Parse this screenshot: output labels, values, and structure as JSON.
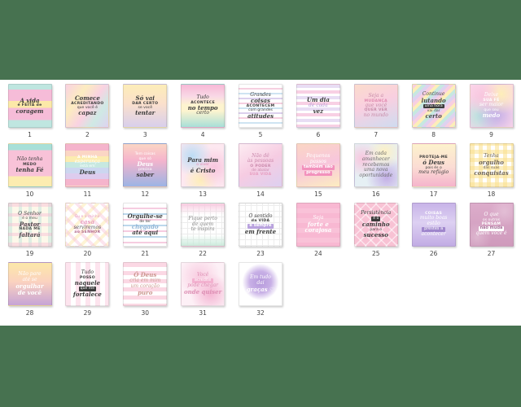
{
  "page": {
    "background_color": "#477250",
    "sheet_color": "#ffffff",
    "description": "product-gallery-of-32-quote-cards"
  },
  "grid": {
    "rows": 4,
    "cols": 9,
    "total_cards": 32
  },
  "cards": [
    {
      "n": "1",
      "fg": "#3b3b3b",
      "bg": "linear-gradient(180deg,#bfe6e0 0%,#bfe6e0 12%,#f6bcd8 12%,#f6bcd8 38%,#fce9a8 38%,#fce9a8 55%,#f6bcd8 55%,#f6bcd8 84%,#bfe6e0 84%,#bfe6e0 100%)",
      "lines": [
        {
          "t": "A vida",
          "s": "b"
        },
        {
          "t": "é FEITA de",
          "s": "c"
        },
        {
          "t": "coragem",
          "s": "b"
        }
      ]
    },
    {
      "n": "2",
      "fg": "#3b3b3b",
      "bg": "linear-gradient(125deg,#f9d2e2 0%,#fcecc0 30%,#f9d2e2 55%,#cfe9e4 75%,#ded2f0 100%)",
      "lines": [
        {
          "t": "Comece",
          "s": "b"
        },
        {
          "t": "ACREDITANDO",
          "s": "c"
        },
        {
          "t": "que você é",
          "s": "sm"
        },
        {
          "t": "capaz",
          "s": "b"
        }
      ]
    },
    {
      "n": "3",
      "fg": "#3b3b3b",
      "bg": "linear-gradient(180deg,#fcedb8 0%,#fbe0cc 45%,#d8cfec 100%)",
      "lines": [
        {
          "t": "Só vai",
          "s": "b"
        },
        {
          "t": "DAR CERTO",
          "s": "c"
        },
        {
          "t": "se você",
          "s": "sm"
        },
        {
          "t": "tentar",
          "s": "b"
        }
      ]
    },
    {
      "n": "4",
      "fg": "#3b3b3b",
      "bg": "linear-gradient(180deg,#f7b8d6 0%,#f9d9e6 28%,#fdf4cf 48%,#fdf4cf 62%,#a8dfd8 100%)",
      "lines": [
        {
          "t": "Tudo",
          "s": "s"
        },
        {
          "t": "ACONTECE",
          "s": "c"
        },
        {
          "t": "no tempo",
          "s": "b"
        },
        {
          "t": "certo",
          "s": "s"
        }
      ]
    },
    {
      "n": "5",
      "fg": "#3b3b3b",
      "bg": "repeating-linear-gradient(180deg,#ffffff 0px,#ffffff 4px,#f6cfe0 4px,#f6cfe0 6px,#ffffff 6px,#ffffff 10px,#cfe4f2 10px,#cfe4f2 12px,#ffffff 12px,#ffffff 16px,#dcd0ee 16px,#dcd0ee 18px)",
      "lines": [
        {
          "t": "Grandes",
          "s": "s"
        },
        {
          "t": "coisas",
          "s": "b"
        },
        {
          "t": "ACONTECEM",
          "s": "c"
        },
        {
          "t": "com grandes",
          "s": "sm"
        },
        {
          "t": "atitudes",
          "s": "b"
        }
      ]
    },
    {
      "n": "6",
      "fg": "#3b3b3b",
      "bg": "repeating-linear-gradient(180deg,#e8ddf4 0px,#e8ddf4 4px,#ffffff 4px,#ffffff 7px,#f8d0e4 7px,#f8d0e4 11px,#ffffff 11px,#ffffff 14px)",
      "lines": [
        {
          "t": "Um dia",
          "s": "b"
        },
        {
          "t": "de cada",
          "s": "s",
          "col": "#b49ad8"
        },
        {
          "t": "vez",
          "s": "b"
        }
      ]
    },
    {
      "n": "7",
      "fg": "#c78ba8",
      "bg": "linear-gradient(160deg,#fbdccc 0%,#f9cfe0 45%,#cfdcf0 100%)",
      "lines": [
        {
          "t": "Seja a",
          "s": "s"
        },
        {
          "t": "MUDANÇA",
          "s": "c",
          "col": "#e08ab0"
        },
        {
          "t": "que você",
          "s": "s"
        },
        {
          "t": "QUER VER",
          "s": "c"
        },
        {
          "t": "no mundo",
          "s": "s"
        }
      ]
    },
    {
      "n": "8",
      "fg": "#4a4a4a",
      "bg": "repeating-linear-gradient(135deg,#f8cfe0 0px,#f8cfe0 4px,#fdeeb8 4px,#fdeeb8 8px,#c6e8e0 8px,#c6e8e0 12px,#ded2f0 12px,#ded2f0 16px)",
      "lines": [
        {
          "t": "Continue",
          "s": "s"
        },
        {
          "t": "lutando",
          "s": "b"
        },
        {
          "t": "uma hora",
          "s": "box"
        },
        {
          "t": "vai dar",
          "s": "sm"
        },
        {
          "t": "certo",
          "s": "b"
        }
      ]
    },
    {
      "n": "9",
      "fg": "#ffffff",
      "bg": "radial-gradient(circle at 28% 28%,#f8c6de 0%,rgba(248,198,222,0) 42%),radial-gradient(circle at 72% 22%,#fdeeb8 0%,rgba(253,238,184,0) 45%),radial-gradient(circle at 62% 72%,#c3aee6 0%,rgba(195,174,230,0) 52%),radial-gradient(circle at 22% 75%,#b8e4de 0%,rgba(184,228,222,0) 48%),#fbd6ea",
      "lines": [
        {
          "t": "Deixe",
          "s": "s"
        },
        {
          "t": "SUA FÉ",
          "s": "c"
        },
        {
          "t": "ser maior",
          "s": "s"
        },
        {
          "t": "que seu",
          "s": "sm"
        },
        {
          "t": "medo",
          "s": "b"
        }
      ]
    },
    {
      "n": "10",
      "fg": "#3b3b3b",
      "bg": "linear-gradient(180deg,#a8e0d8 0%,#a8e0d8 14%,#f8c2d8 14%,#f8c2d8 76%,#fcecb0 76%,#fcecb0 100%)",
      "lines": [
        {
          "t": "Não tenha",
          "s": "s"
        },
        {
          "t": "MEDO",
          "s": "c"
        },
        {
          "t": "tenha Fé",
          "s": "b"
        }
      ]
    },
    {
      "n": "11",
      "fg": "#ffffff",
      "bg": "repeating-linear-gradient(180deg,#f5b4cc 0px,#f5b4cc 8px,#fbd6c4 8px,#fbd6c4 15px,#fcecb0 15px,#fcecb0 22px,#c6e8e0 22px,#c6e8e0 29px,#ccd6f0 29px,#ccd6f0 36px,#ddccee 36px,#ddccee 43px)",
      "lines": [
        {
          "t": "A MINHA",
          "s": "c"
        },
        {
          "t": "esperança",
          "s": "s"
        },
        {
          "t": "está em",
          "s": "sm"
        },
        {
          "t": "Deus",
          "s": "b",
          "col": "#3b3b3b"
        }
      ]
    },
    {
      "n": "12",
      "fg": "#ffffff",
      "bg": "linear-gradient(180deg,#fbd6c4 0%,#f5b4cc 38%,#9cb4e4 100%)",
      "lines": [
        {
          "t": "Tem coisas",
          "s": "sm"
        },
        {
          "t": "que só",
          "s": "sm"
        },
        {
          "t": "Deus",
          "s": "b"
        },
        {
          "t": "precisa",
          "s": "sm"
        },
        {
          "t": "saber",
          "s": "b",
          "col": "#3b3b3b"
        }
      ]
    },
    {
      "n": "13",
      "fg": "#3b3b3b",
      "bg": "radial-gradient(circle at 25% 28%,#bcdcf4 0%,rgba(188,220,244,0) 45%),radial-gradient(circle at 78% 55%,#f8c6de 0%,rgba(248,198,222,0) 50%),radial-gradient(circle at 45% 85%,#fdeeb8 0%,rgba(253,238,184,0) 40%),#fde8f0",
      "lines": [
        {
          "t": "Para mim",
          "s": "b"
        },
        {
          "t": "o viver",
          "s": "sm",
          "col": "#e08ab0"
        },
        {
          "t": "é Cristo",
          "s": "b"
        }
      ]
    },
    {
      "n": "14",
      "fg": "#c989ab",
      "bg": "linear-gradient(150deg,#fdecf2 0%,#f6cce2 50%,#ddd0f0 100%)",
      "lines": [
        {
          "t": "Não dê",
          "s": "s"
        },
        {
          "t": "às pessoas",
          "s": "s"
        },
        {
          "t": "O PODER",
          "s": "c"
        },
        {
          "t": "de abalar",
          "s": "sm"
        },
        {
          "t": "SUA VIDA",
          "s": "c",
          "col": "#e79ec0"
        }
      ]
    },
    {
      "n": "15",
      "fg": "#ffffff",
      "accent": "#f291bc",
      "bg": "linear-gradient(165deg,#fbd6c4 0%,#f8c6dc 50%,#fcedc0 100%)",
      "lines": [
        {
          "t": "Pequenos",
          "s": "s"
        },
        {
          "t": "passos",
          "s": "s"
        },
        {
          "t": "também são",
          "s": "hl"
        },
        {
          "t": "progresso",
          "s": "hl"
        }
      ]
    },
    {
      "n": "16",
      "fg": "#6b6b6b",
      "bg": "radial-gradient(circle at 70% 18%,#fdf0c6 0%,rgba(253,240,198,0) 38%),radial-gradient(circle at 18% 35%,#f8c6de 0%,rgba(248,198,222,0) 42%),radial-gradient(circle at 75% 78%,#c3aee6 0%,rgba(195,174,230,0) 45%),#e6f0f4",
      "lines": [
        {
          "t": "Em cada",
          "s": "s"
        },
        {
          "t": "amanhecer",
          "s": "s"
        },
        {
          "t": "recebemos",
          "s": "s"
        },
        {
          "t": "uma nova",
          "s": "s"
        },
        {
          "t": "oportunidade",
          "s": "s"
        }
      ]
    },
    {
      "n": "17",
      "fg": "#3b3b3b",
      "bg": "linear-gradient(180deg,#fdf2cc 0%,#fbdcd4 55%,#f5b4cc 100%)",
      "lines": [
        {
          "t": "PROTEJA-ME",
          "s": "c"
        },
        {
          "t": "ó Deus",
          "s": "b"
        },
        {
          "t": "pois és o",
          "s": "sm"
        },
        {
          "t": "meu refúgio",
          "s": "s"
        }
      ]
    },
    {
      "n": "18",
      "fg": "#6b6258",
      "bg": "repeating-linear-gradient(0deg,rgba(250,224,140,0.55) 0px,rgba(250,224,140,0.55) 5px,rgba(255,255,255,0) 5px,rgba(255,255,255,0) 10px),repeating-linear-gradient(90deg,rgba(250,224,140,0.55) 0px,rgba(250,224,140,0.55) 5px,rgba(255,255,255,0) 5px,rgba(255,255,255,0) 10px),#ffffff",
      "lines": [
        {
          "t": "Tenha",
          "s": "s"
        },
        {
          "t": "orgulho",
          "s": "b"
        },
        {
          "t": "das suas",
          "s": "sm"
        },
        {
          "t": "conquistas",
          "s": "b"
        }
      ]
    },
    {
      "n": "19",
      "fg": "#4b4b4b",
      "bg": "repeating-linear-gradient(0deg,rgba(246,188,212,0.45) 0px,rgba(246,188,212,0.45) 4px,rgba(255,255,255,0) 4px,rgba(255,255,255,0) 12px),repeating-linear-gradient(90deg,rgba(196,230,220,0.55) 0px,rgba(196,230,220,0.55) 4px,rgba(255,255,255,0) 4px,rgba(255,255,255,0) 12px),#fdf8ea",
      "lines": [
        {
          "t": "O Senhor",
          "s": "s"
        },
        {
          "t": "é o meu",
          "s": "sm"
        },
        {
          "t": "Pastor",
          "s": "b"
        },
        {
          "t": "NADA ME",
          "s": "c"
        },
        {
          "t": "faltará",
          "s": "b"
        }
      ]
    },
    {
      "n": "20",
      "fg": "#5b5b5b",
      "bg": "repeating-linear-gradient(45deg,rgba(246,188,212,0.4) 0px,rgba(246,188,212,0.4) 4px,rgba(255,255,255,0) 4px,rgba(255,255,255,0) 11px),repeating-linear-gradient(-45deg,rgba(252,228,150,0.4) 0px,rgba(252,228,150,0.4) 4px,rgba(255,255,255,0) 4px,rgba(255,255,255,0) 11px),#ffffff",
      "lines": [
        {
          "t": "Eu e a minha",
          "s": "sm",
          "col": "#e79ec0"
        },
        {
          "t": "casa",
          "s": "b",
          "col": "#e79ec0"
        },
        {
          "t": "serviremos",
          "s": "s"
        },
        {
          "t": "ao SENHOR",
          "s": "c",
          "col": "#b06a8c"
        }
      ]
    },
    {
      "n": "21",
      "fg": "#3b3b3b",
      "bg": "repeating-linear-gradient(180deg,#ffffff 0px,#ffffff 5px,#f6cce0 5px,#f6cce0 7px,#ffffff 7px,#ffffff 12px,#bcd8ec 12px,#bcd8ec 14px)",
      "lines": [
        {
          "t": "Orgulhe-se",
          "s": "b"
        },
        {
          "t": "de ter",
          "s": "sm"
        },
        {
          "t": "chegado",
          "s": "b",
          "col": "#8fb4d6"
        },
        {
          "t": "até aqui",
          "s": "b"
        }
      ]
    },
    {
      "n": "22",
      "fg": "#8a8a8a",
      "bg": "linear-gradient(180deg,rgba(248,198,222,0.9) 0%,rgba(248,198,222,0) 26%),linear-gradient(0deg,rgba(198,232,216,0.9) 0%,rgba(198,232,216,0) 26%),repeating-linear-gradient(0deg,#ececec 0px,#ececec 1px,rgba(255,255,255,0) 1px,rgba(255,255,255,0) 7px),repeating-linear-gradient(90deg,#ececec 0px,#ececec 1px,rgba(255,255,255,0) 1px,rgba(255,255,255,0) 7px),#ffffff",
      "lines": [
        {
          "t": "Fique perto",
          "s": "s"
        },
        {
          "t": "de quem",
          "s": "s"
        },
        {
          "t": "te inspira",
          "s": "s"
        }
      ]
    },
    {
      "n": "23",
      "fg": "#3b3b3b",
      "accent": "#b9a2de",
      "bg": "repeating-linear-gradient(0deg,#ededed 0px,#ededed 1px,rgba(255,255,255,0) 1px,rgba(255,255,255,0) 7px),repeating-linear-gradient(90deg,#ededed 0px,#ededed 1px,rgba(255,255,255,0) 1px,rgba(255,255,255,0) 7px),#ffffff",
      "lines": [
        {
          "t": "O sentido",
          "s": "s"
        },
        {
          "t": "da VIDA",
          "s": "c"
        },
        {
          "t": "é sempre",
          "s": "hl"
        },
        {
          "t": "em frente",
          "s": "b"
        }
      ]
    },
    {
      "n": "24",
      "fg": "#ffffff",
      "bg": "repeating-linear-gradient(180deg,#f8b8d2 0px,#f8b8d2 6px,#f9c2d8 6px,#f9c2d8 12px)",
      "lines": [
        {
          "t": "Seja",
          "s": "s"
        },
        {
          "t": "forte e",
          "s": "b"
        },
        {
          "t": "corajosa",
          "s": "b"
        }
      ]
    },
    {
      "n": "25",
      "fg": "#3b3b3b",
      "bg": "repeating-linear-gradient(45deg,rgba(255,255,255,0.55) 0px,rgba(255,255,255,0.55) 1.5px,rgba(255,255,255,0) 1.5px,rgba(255,255,255,0) 9px),repeating-linear-gradient(-45deg,rgba(255,255,255,0.55) 0px,rgba(255,255,255,0.55) 1.5px,rgba(255,255,255,0) 1.5px,rgba(255,255,255,0) 9px),#f8c2d4",
      "lines": [
        {
          "t": "Persistência",
          "s": "s"
        },
        {
          "t": "é o",
          "s": "box"
        },
        {
          "t": "caminho",
          "s": "b"
        },
        {
          "t": "para o",
          "s": "sm"
        },
        {
          "t": "sucesso",
          "s": "b"
        }
      ]
    },
    {
      "n": "26",
      "fg": "#ffffff",
      "accent": "#9f86cc",
      "bg": "linear-gradient(180deg,#c8b4e8 0%,#ddd0f2 45%,#c2ace4 100%)",
      "lines": [
        {
          "t": "COISAS",
          "s": "c"
        },
        {
          "t": "muito boas",
          "s": "s"
        },
        {
          "t": "estão",
          "s": "s"
        },
        {
          "t": "prestes a",
          "s": "rib"
        },
        {
          "t": "acontecer",
          "s": "s"
        }
      ]
    },
    {
      "n": "27",
      "fg": "#ffffff",
      "bg": "radial-gradient(circle at 80% 20%,rgba(255,255,255,0.25) 0%,rgba(255,255,255,0) 30%),radial-gradient(circle at 15% 80%,rgba(255,255,255,0.25) 0%,rgba(255,255,255,0) 30%),linear-gradient(180deg,#dcacca 0%,#cf9abc 100%)",
      "lines": [
        {
          "t": "O que",
          "s": "s"
        },
        {
          "t": "os outros",
          "s": "sm"
        },
        {
          "t": "PENSAM",
          "s": "c"
        },
        {
          "t": "não muda",
          "s": "wbox"
        },
        {
          "t": "quem você é",
          "s": "s"
        }
      ]
    },
    {
      "n": "28",
      "fg": "#ffffff",
      "bg": "linear-gradient(180deg,#fce8a8 0%,#fbd2c0 45%,#c6a4d6 100%)",
      "lines": [
        {
          "t": "Não pare",
          "s": "s"
        },
        {
          "t": "até se",
          "s": "s"
        },
        {
          "t": "orgulhar",
          "s": "b"
        },
        {
          "t": "de você",
          "s": "b"
        }
      ]
    },
    {
      "n": "29",
      "fg": "#3b3b3b",
      "bg": "repeating-linear-gradient(90deg,#fde4ee 0px,#fde4ee 6px,#ffffff 6px,#ffffff 12px)",
      "lines": [
        {
          "t": "Tudo",
          "s": "s"
        },
        {
          "t": "POSSO",
          "s": "c"
        },
        {
          "t": "naquele",
          "s": "b"
        },
        {
          "t": "que me",
          "s": "box"
        },
        {
          "t": "fortalece",
          "s": "b"
        }
      ]
    },
    {
      "n": "30",
      "fg": "#cb968e",
      "bg": "repeating-linear-gradient(180deg,#fbd8e4 0px,#fbd8e4 5px,#ffffff 5px,#ffffff 10px)",
      "lines": [
        {
          "t": "Ó Deus",
          "s": "b"
        },
        {
          "t": "cria em mim",
          "s": "s"
        },
        {
          "t": "um coração",
          "s": "s"
        },
        {
          "t": "puro",
          "s": "b"
        }
      ]
    },
    {
      "n": "31",
      "fg": "#dd8fb4",
      "accent": "#f3b2d0",
      "bg": "radial-gradient(circle at 42% 32%,#f8cce0 0%,rgba(248,204,224,0) 55%),radial-gradient(circle at 68% 72%,#f4b4d2 0%,rgba(244,180,210,0) 48%),#fdf0f6",
      "lines": [
        {
          "t": "Você",
          "s": "s"
        },
        {
          "t": "acredite",
          "s": "rib"
        },
        {
          "t": "pode chegar",
          "s": "s"
        },
        {
          "t": "onde quiser",
          "s": "b"
        }
      ]
    },
    {
      "n": "32",
      "fg": "#ffffff",
      "bg": "radial-gradient(circle at 50% 45%,#b498da 0%,#c8b0e6 34%,rgba(200,176,230,0) 58%),#ffffff",
      "lines": [
        {
          "t": "Em tudo",
          "s": "s"
        },
        {
          "t": "dai",
          "s": "s"
        },
        {
          "t": "graças ♡",
          "s": "b"
        }
      ]
    }
  ]
}
